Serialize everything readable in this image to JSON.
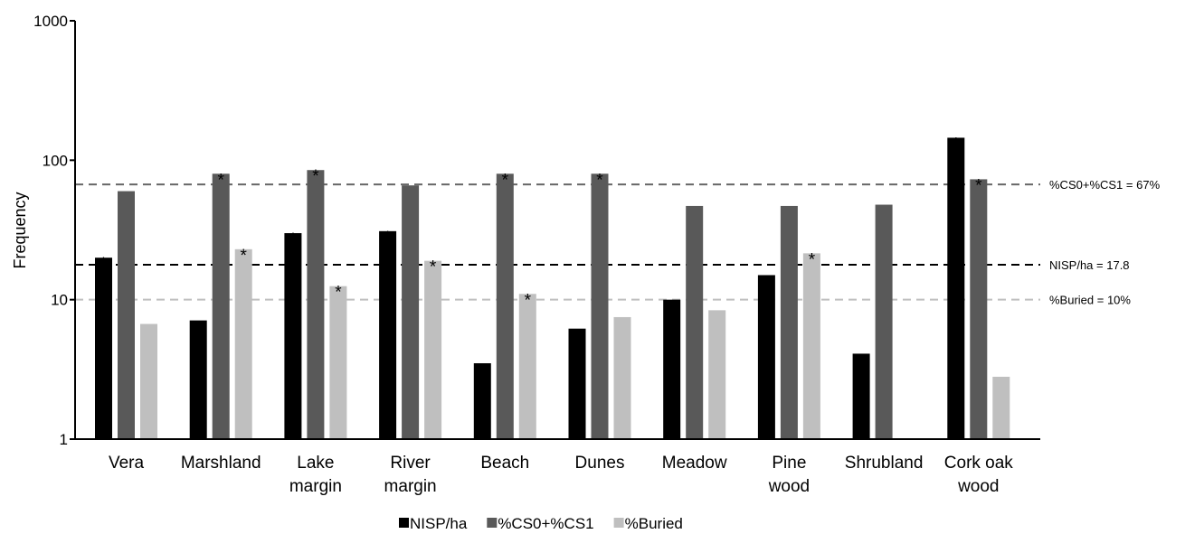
{
  "chart_data": {
    "type": "bar",
    "title": "",
    "xlabel": "",
    "ylabel": "Frequency",
    "yscale": "log",
    "ylim": [
      1,
      1000
    ],
    "y_ticks": [
      "1",
      "10",
      "100",
      "1000"
    ],
    "grid": false,
    "legend_position": "bottom",
    "categories": [
      [
        "Vera"
      ],
      [
        "Marshland"
      ],
      [
        "Lake",
        "margin"
      ],
      [
        "River",
        "margin"
      ],
      [
        "Beach"
      ],
      [
        "Dunes"
      ],
      [
        "Meadow"
      ],
      [
        "Pine",
        "wood"
      ],
      [
        "Shrubland"
      ],
      [
        "Cork oak",
        "wood"
      ]
    ],
    "series": [
      {
        "name": "NISP/ha",
        "color": "#000000",
        "values": [
          20,
          7.1,
          30,
          31,
          3.5,
          6.2,
          10,
          15,
          4.1,
          145
        ],
        "significant": [
          true,
          false,
          true,
          true,
          false,
          false,
          false,
          false,
          false,
          true
        ]
      },
      {
        "name": "%CS0+%CS1",
        "color": "#595959",
        "values": [
          60,
          80,
          85,
          66,
          80,
          80,
          47,
          47,
          48,
          73
        ],
        "significant": [
          false,
          true,
          true,
          false,
          true,
          true,
          false,
          false,
          false,
          true
        ]
      },
      {
        "name": "%Buried",
        "color": "#bfbfbf",
        "values": [
          6.7,
          23,
          12.5,
          19,
          11,
          7.5,
          8.4,
          21.5,
          null,
          2.8
        ],
        "significant": [
          false,
          true,
          true,
          true,
          true,
          false,
          false,
          true,
          false,
          false
        ]
      }
    ],
    "significance_marker": "*",
    "reference_lines": [
      {
        "label": "%CS0+%CS1 = 67%",
        "value": 67,
        "color": "#666666"
      },
      {
        "label": "NISP/ha = 17.8",
        "value": 17.8,
        "color": "#000000"
      },
      {
        "label": "%Buried = 10%",
        "value": 10,
        "color": "#bfbfbf"
      }
    ]
  }
}
